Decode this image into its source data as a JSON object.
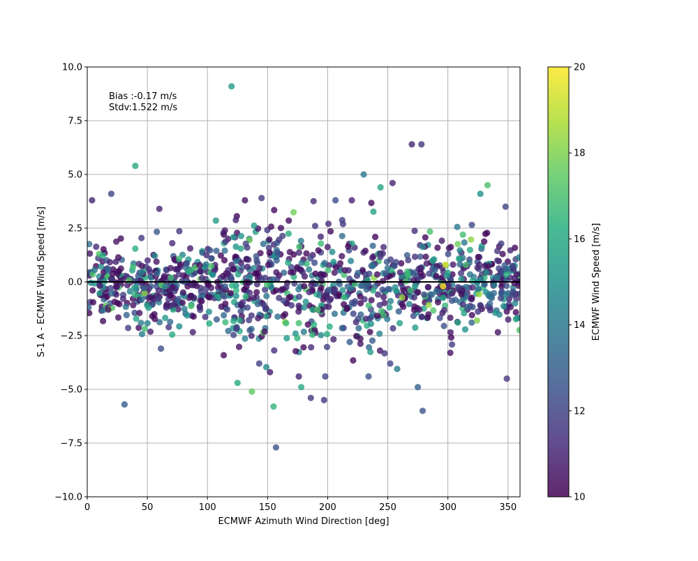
{
  "chart_data": {
    "type": "scatter",
    "title": "",
    "xlabel": "ECMWF Azimuth Wind Direction [deg]",
    "ylabel": "S-1 A - ECMWF Wind Speed [m/s]",
    "xlim": [
      0,
      360
    ],
    "ylim": [
      -10,
      10
    ],
    "xticks": [
      0,
      50,
      100,
      150,
      200,
      250,
      300,
      350
    ],
    "xtick_labels": [
      "0",
      "50",
      "100",
      "150",
      "200",
      "250",
      "300",
      "350"
    ],
    "yticks": [
      -10,
      -7.5,
      -5,
      -2.5,
      0,
      2.5,
      5,
      7.5,
      10
    ],
    "ytick_labels": [
      "−10.0",
      "−7.5",
      "−5.0",
      "−2.5",
      "0.0",
      "2.5",
      "5.0",
      "7.5",
      "10.0"
    ],
    "grid": true,
    "zero_line": 0,
    "annotation": [
      "Bias :-0.17 m/s",
      "Stdv:1.522 m/s"
    ],
    "colorbar": {
      "label": "ECMWF Wind Speed [m/s]",
      "range": [
        10,
        20
      ],
      "ticks": [
        10,
        12,
        14,
        16,
        18,
        20
      ],
      "tick_labels": [
        "10",
        "12",
        "14",
        "16",
        "18",
        "20"
      ],
      "colormap": "viridis"
    },
    "marker_opacity": 0.8,
    "outliers": [
      {
        "x": 120,
        "y": 9.1,
        "c": 15.5
      },
      {
        "x": 40,
        "y": 5.4,
        "c": 16.0
      },
      {
        "x": 230,
        "y": 5.0,
        "c": 14.0
      },
      {
        "x": 244,
        "y": 4.4,
        "c": 15.8
      },
      {
        "x": 254,
        "y": 4.6,
        "c": 11.0
      },
      {
        "x": 270,
        "y": 6.4,
        "c": 11.0
      },
      {
        "x": 278,
        "y": 6.4,
        "c": 11.5
      },
      {
        "x": 333,
        "y": 4.5,
        "c": 17.0
      },
      {
        "x": 20,
        "y": 4.1,
        "c": 12.0
      },
      {
        "x": 145,
        "y": 3.9,
        "c": 11.5
      },
      {
        "x": 4,
        "y": 3.8,
        "c": 11.0
      },
      {
        "x": 327,
        "y": 4.1,
        "c": 15.0
      },
      {
        "x": 31,
        "y": -5.7,
        "c": 13.0
      },
      {
        "x": 125,
        "y": -4.7,
        "c": 16.0
      },
      {
        "x": 137,
        "y": -5.1,
        "c": 17.5
      },
      {
        "x": 155,
        "y": -5.8,
        "c": 16.5
      },
      {
        "x": 157,
        "y": -7.7,
        "c": 12.5
      },
      {
        "x": 178,
        "y": -4.9,
        "c": 16.0
      },
      {
        "x": 186,
        "y": -5.4,
        "c": 11.5
      },
      {
        "x": 197,
        "y": -5.5,
        "c": 11.5
      },
      {
        "x": 275,
        "y": -4.9,
        "c": 13.0
      },
      {
        "x": 279,
        "y": -6.0,
        "c": 12.5
      },
      {
        "x": 349,
        "y": -4.5,
        "c": 11.5
      },
      {
        "x": 302,
        "y": -3.3,
        "c": 10.5
      },
      {
        "x": 234,
        "y": -4.4,
        "c": 12.5
      },
      {
        "x": 198,
        "y": -4.4,
        "c": 12.0
      },
      {
        "x": 176,
        "y": -4.4,
        "c": 11.0
      },
      {
        "x": 143,
        "y": -3.8,
        "c": 12.0
      },
      {
        "x": 252,
        "y": -3.8,
        "c": 12.0
      },
      {
        "x": 60,
        "y": 3.4,
        "c": 11.0
      },
      {
        "x": 348,
        "y": 3.5,
        "c": 12.0
      },
      {
        "x": 298,
        "y": 0.8,
        "c": 19.5
      },
      {
        "x": 296,
        "y": -0.2,
        "c": 20.0
      }
    ],
    "cloud_summary": {
      "count": 1250,
      "x_range": [
        0,
        360
      ],
      "y_mean": -0.17,
      "y_std": 1.522
    }
  }
}
